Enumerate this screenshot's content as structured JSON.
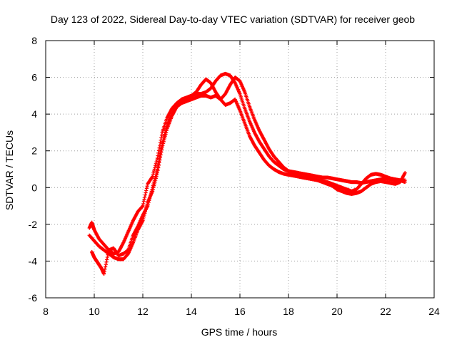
{
  "chart_data": {
    "type": "scatter",
    "title": "Day 123 of 2022, Sidereal Day-to-day VTEC variation (SDTVAR) for receiver geob",
    "xlabel": "GPS time / hours",
    "ylabel": "SDTVAR / TECUs",
    "xlim": [
      8,
      24
    ],
    "ylim": [
      -6,
      8
    ],
    "xticks": [
      "8",
      "10",
      "12",
      "14",
      "16",
      "18",
      "20",
      "22",
      "24"
    ],
    "yticks": [
      "-6",
      "-4",
      "-2",
      "0",
      "2",
      "4",
      "6",
      "8"
    ],
    "grid": true,
    "marker": "plus",
    "color": "#ff0000",
    "series": [
      {
        "name": "track-1",
        "x": [
          9.8,
          9.9,
          10.0,
          10.2,
          10.4,
          10.6,
          10.8,
          11.0,
          11.2,
          11.4,
          11.6,
          11.8,
          12.0,
          12.2,
          12.4,
          12.6,
          12.8,
          13.0,
          13.2,
          13.4,
          13.6,
          13.8,
          14.0,
          14.2,
          14.4,
          14.6,
          14.8,
          15.0,
          15.2,
          15.4,
          15.6,
          15.8,
          16.0,
          16.2,
          16.4,
          16.6,
          16.8,
          17.0,
          17.2,
          17.4,
          17.6,
          17.8,
          18.0,
          18.2,
          18.4,
          18.6,
          18.8,
          19.0,
          19.2,
          19.4,
          19.6,
          19.8,
          20.0,
          20.2,
          20.4,
          20.6,
          20.8,
          21.0,
          21.2,
          21.4,
          21.6,
          21.8,
          22.0,
          22.2,
          22.4,
          22.6,
          22.8
        ],
        "y": [
          -2.2,
          -1.9,
          -2.3,
          -2.8,
          -3.1,
          -3.4,
          -3.6,
          -3.5,
          -3.0,
          -2.4,
          -1.8,
          -1.3,
          -1.0,
          0.2,
          0.6,
          1.6,
          3.0,
          3.8,
          4.3,
          4.6,
          4.8,
          4.9,
          5.0,
          5.1,
          5.1,
          5.2,
          5.4,
          5.8,
          6.1,
          6.2,
          6.1,
          5.7,
          5.1,
          4.3,
          3.6,
          3.0,
          2.5,
          2.1,
          1.7,
          1.4,
          1.2,
          1.0,
          0.9,
          0.85,
          0.8,
          0.75,
          0.7,
          0.65,
          0.6,
          0.55,
          0.55,
          0.5,
          0.45,
          0.4,
          0.35,
          0.3,
          0.3,
          0.25,
          0.3,
          0.35,
          0.4,
          0.45,
          0.5,
          0.45,
          0.4,
          0.35,
          0.4
        ]
      },
      {
        "name": "track-2",
        "x": [
          9.8,
          10.0,
          10.2,
          10.4,
          10.6,
          10.8,
          11.0,
          11.2,
          11.4,
          11.6,
          11.8,
          12.0,
          12.2,
          12.4,
          12.6,
          12.8,
          13.0,
          13.2,
          13.4,
          13.6,
          13.8,
          14.0,
          14.2,
          14.4,
          14.6,
          14.8,
          15.0,
          15.2,
          15.4,
          15.6,
          15.8,
          16.0,
          16.2,
          16.4,
          16.6,
          16.8,
          17.0,
          17.2,
          17.4,
          17.6,
          17.8,
          18.0,
          18.2,
          18.4,
          18.6,
          18.8,
          19.0,
          19.2,
          19.4,
          19.6,
          19.8,
          20.0,
          20.2,
          20.4,
          20.6,
          20.8,
          21.0,
          21.2,
          21.4,
          21.6,
          21.8,
          22.0,
          22.2,
          22.4,
          22.6,
          22.8
        ],
        "y": [
          -2.6,
          -2.9,
          -3.2,
          -3.4,
          -3.6,
          -3.8,
          -3.9,
          -3.9,
          -3.6,
          -3.0,
          -2.3,
          -1.8,
          -0.8,
          -0.2,
          0.8,
          2.2,
          3.2,
          3.9,
          4.4,
          4.6,
          4.7,
          4.8,
          4.9,
          5.0,
          5.0,
          4.9,
          5.0,
          4.8,
          5.1,
          5.6,
          6.0,
          5.8,
          5.2,
          4.4,
          3.7,
          3.1,
          2.6,
          2.1,
          1.7,
          1.4,
          1.1,
          0.9,
          0.7,
          0.6,
          0.55,
          0.5,
          0.45,
          0.4,
          0.35,
          0.3,
          0.2,
          0.1,
          0.0,
          -0.1,
          -0.2,
          -0.1,
          0.2,
          0.5,
          0.7,
          0.75,
          0.7,
          0.6,
          0.5,
          0.45,
          0.4,
          0.3
        ]
      },
      {
        "name": "track-3",
        "x": [
          9.9,
          10.0,
          10.1,
          10.2,
          10.3,
          10.4,
          10.6,
          10.8,
          11.0,
          11.2,
          11.4,
          11.6,
          11.8,
          12.0,
          12.2,
          12.4,
          12.6,
          12.8,
          13.0,
          13.2,
          13.4,
          13.6,
          13.8,
          14.0,
          14.2,
          14.4,
          14.6,
          14.8,
          15.0,
          15.2,
          15.4,
          15.6,
          15.8,
          16.0,
          16.2,
          16.4,
          16.6,
          16.8,
          17.0,
          17.2,
          17.4,
          17.6,
          17.8,
          18.0,
          18.2,
          18.4,
          18.6,
          18.8,
          19.0,
          19.2,
          19.4,
          19.6,
          19.8,
          20.0,
          20.2,
          20.4,
          20.6,
          20.8,
          21.0,
          21.2,
          21.4,
          21.6,
          21.8,
          22.0,
          22.2,
          22.4,
          22.6,
          22.8
        ],
        "y": [
          -3.5,
          -3.8,
          -4.0,
          -4.2,
          -4.4,
          -4.7,
          -3.4,
          -3.3,
          -3.7,
          -3.6,
          -3.4,
          -2.6,
          -2.1,
          -1.5,
          -1.0,
          0.0,
          1.0,
          2.4,
          3.4,
          4.0,
          4.5,
          4.8,
          4.9,
          5.0,
          5.2,
          5.6,
          5.9,
          5.7,
          5.2,
          4.8,
          4.5,
          4.6,
          4.8,
          4.2,
          3.5,
          2.8,
          2.3,
          1.9,
          1.5,
          1.2,
          1.0,
          0.85,
          0.75,
          0.7,
          0.65,
          0.6,
          0.55,
          0.5,
          0.45,
          0.4,
          0.3,
          0.2,
          0.1,
          -0.1,
          -0.2,
          -0.3,
          -0.35,
          -0.3,
          -0.2,
          0.0,
          0.2,
          0.3,
          0.35,
          0.3,
          0.25,
          0.2,
          0.3,
          0.8
        ]
      }
    ]
  }
}
